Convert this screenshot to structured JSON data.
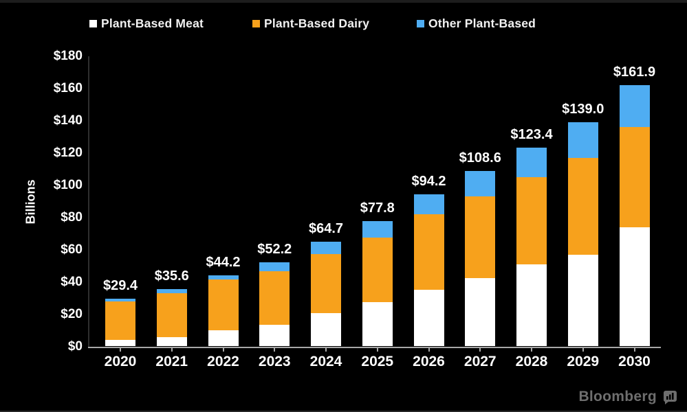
{
  "chart_data": {
    "type": "bar",
    "stacked": true,
    "title": "",
    "xlabel": "",
    "ylabel": "Billions",
    "ylim": [
      0,
      180
    ],
    "ytick_step": 20,
    "ytick_labels": [
      "$0",
      "$20",
      "$40",
      "$60",
      "$80",
      "$100",
      "$120",
      "$140",
      "$160",
      "$180"
    ],
    "grid": false,
    "legend_position": "top",
    "categories": [
      "2020",
      "2021",
      "2022",
      "2023",
      "2024",
      "2025",
      "2026",
      "2027",
      "2028",
      "2029",
      "2030"
    ],
    "series": [
      {
        "name": "Plant-Based Meat",
        "color": "#ffffff",
        "values": [
          4.2,
          5.8,
          10.1,
          13.6,
          20.6,
          27.4,
          34.9,
          42.3,
          50.8,
          57.0,
          73.8
        ]
      },
      {
        "name": "Plant-Based Dairy",
        "color": "#f7a11c",
        "values": [
          23.6,
          27.2,
          31.2,
          33.0,
          36.6,
          40.2,
          47.1,
          50.7,
          54.0,
          59.8,
          62.2
        ]
      },
      {
        "name": "Other Plant-Based",
        "color": "#4fadf2",
        "values": [
          1.6,
          2.6,
          2.9,
          5.6,
          7.5,
          10.2,
          12.2,
          15.6,
          18.6,
          22.2,
          25.9
        ]
      }
    ],
    "totals": [
      29.4,
      35.6,
      44.2,
      52.2,
      64.7,
      77.8,
      94.2,
      108.6,
      123.4,
      139.0,
      161.9
    ],
    "total_labels": [
      "$29.4",
      "$35.6",
      "$44.2",
      "$52.2",
      "$64.7",
      "$77.8",
      "$94.2",
      "$108.6",
      "$123.4",
      "$139.0",
      "$161.9"
    ]
  },
  "branding": {
    "logo_text": "Bloomberg"
  }
}
